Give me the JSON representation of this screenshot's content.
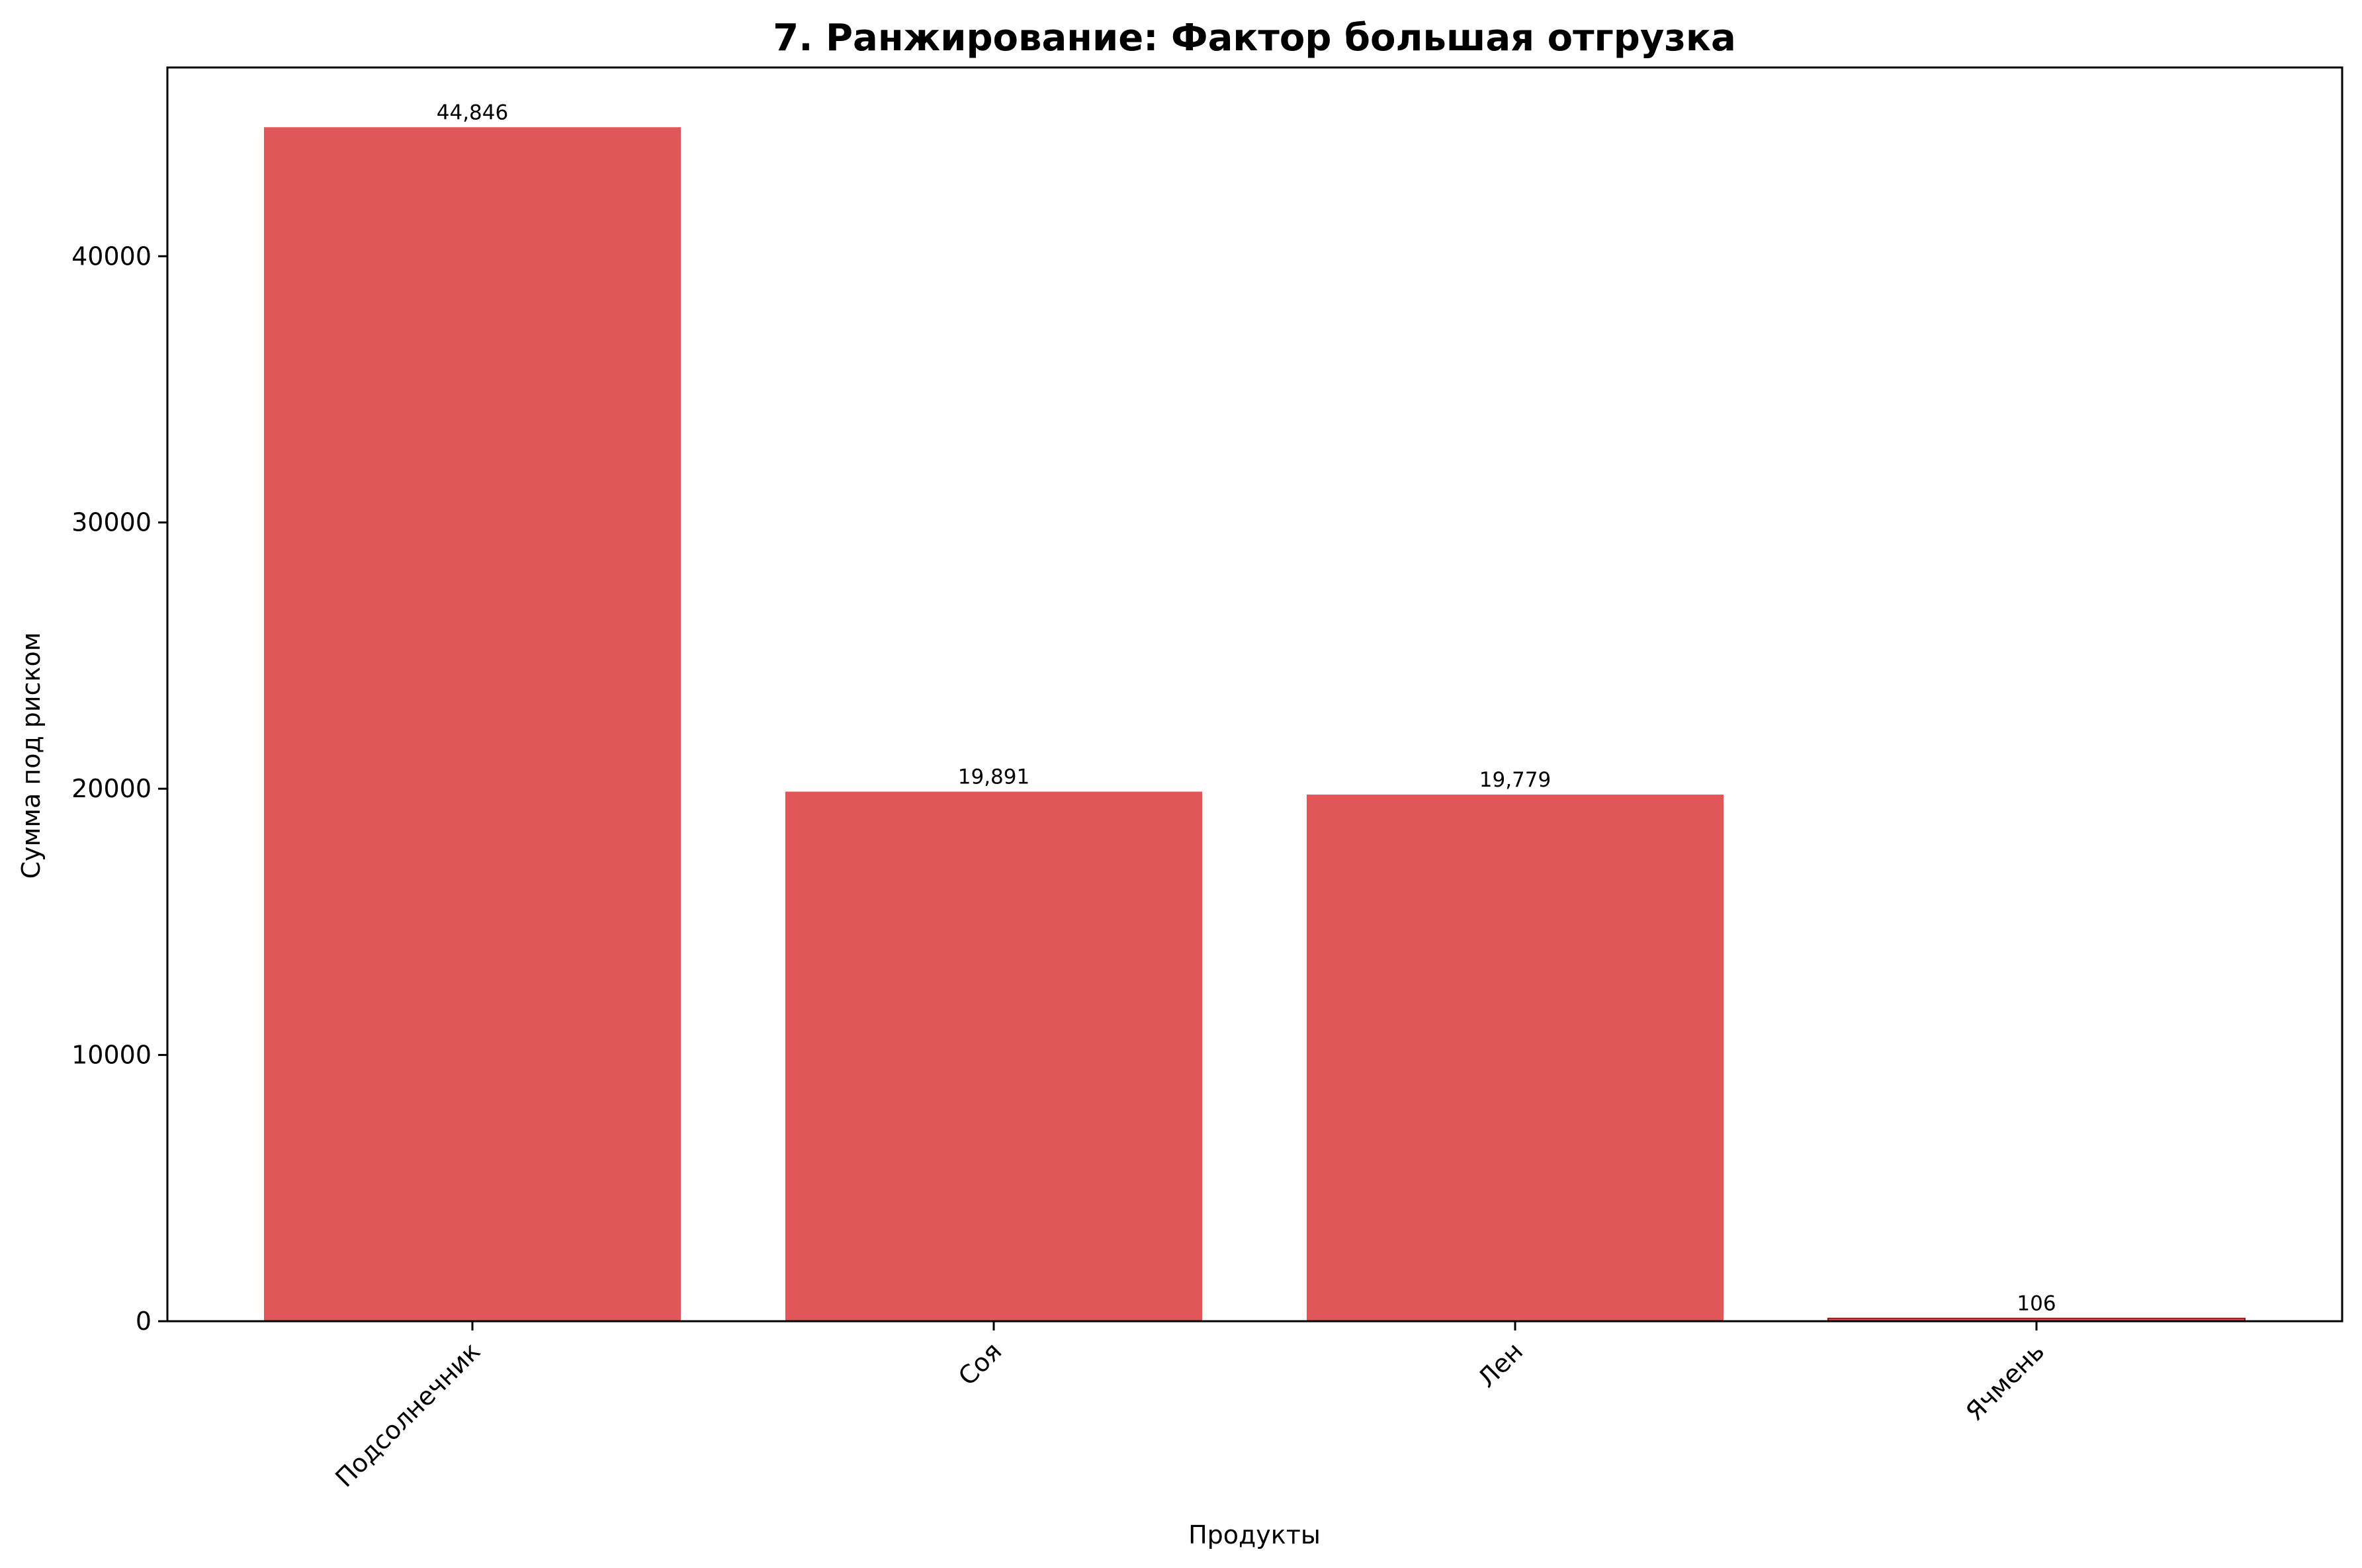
{
  "chart_data": {
    "type": "bar",
    "title": "7. Ранжирование: Фактор большая отгрузка",
    "xlabel": "Продукты",
    "ylabel": "Сумма под риском",
    "categories": [
      "Подсолнечник",
      "Соя",
      "Лен",
      "Ячмень"
    ],
    "values": [
      44846,
      19891,
      19779,
      106
    ],
    "value_labels": [
      "44,846",
      "19,891",
      "19,779",
      "106"
    ],
    "ylim": [
      0,
      47089
    ],
    "yticks": [
      0,
      10000,
      20000,
      30000,
      40000
    ],
    "ytick_labels": [
      "0",
      "10000",
      "20000",
      "30000",
      "40000"
    ],
    "grid": false,
    "bar_color": "#e15759",
    "bar_edge_color": "#8b1a1a"
  }
}
